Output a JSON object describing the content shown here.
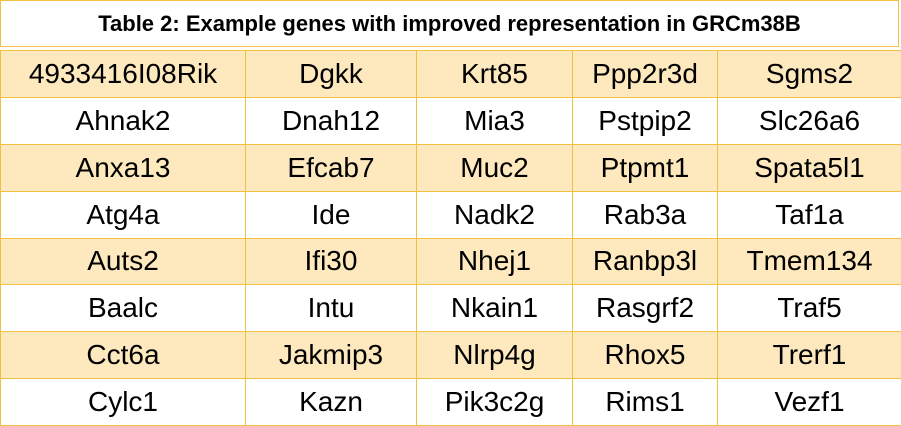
{
  "title": "Table 2: Example genes with improved representation in GRCm38B",
  "colors": {
    "header_border": "#f0c040",
    "stripe": "#fde9bd",
    "cell_border": "#f0c040"
  },
  "rows": [
    [
      "4933416I08Rik",
      "Dgkk",
      "Krt85",
      "Ppp2r3d",
      "Sgms2"
    ],
    [
      "Ahnak2",
      "Dnah12",
      "Mia3",
      "Pstpip2",
      "Slc26a6"
    ],
    [
      "Anxa13",
      "Efcab7",
      "Muc2",
      "Ptpmt1",
      "Spata5l1"
    ],
    [
      "Atg4a",
      "Ide",
      "Nadk2",
      "Rab3a",
      "Taf1a"
    ],
    [
      "Auts2",
      "Ifi30",
      "Nhej1",
      "Ranbp3l",
      "Tmem134"
    ],
    [
      "Baalc",
      "Intu",
      "Nkain1",
      "Rasgrf2",
      "Traf5"
    ],
    [
      "Cct6a",
      "Jakmip3",
      "Nlrp4g",
      "Rhox5",
      "Trerf1"
    ],
    [
      "Cylc1",
      "Kazn",
      "Pik3c2g",
      "Rims1",
      "Vezf1"
    ]
  ]
}
